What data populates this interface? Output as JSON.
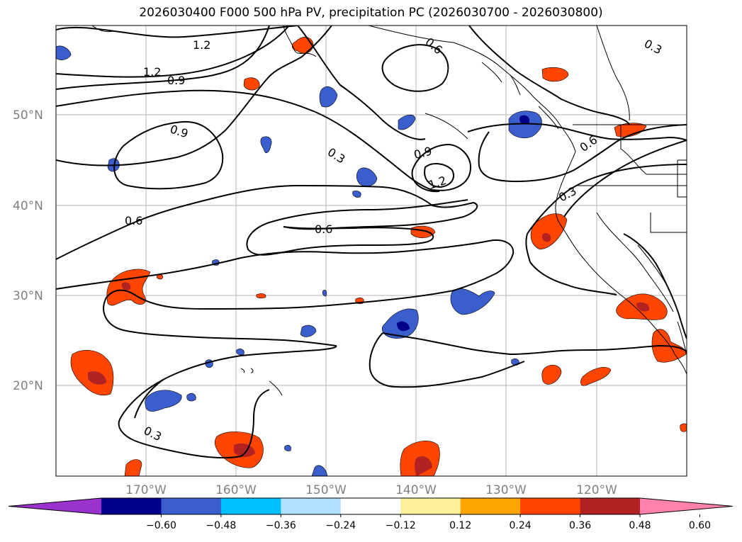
{
  "title": "2026030400 F000 500 hPa PV, precipitation PC (2026030700 - 2026030800)",
  "latitude_labels": [
    "50°N",
    "40°N",
    "30°N",
    "20°N"
  ],
  "longitude_labels": [
    "170°W",
    "160°W",
    "150°W",
    "140°W",
    "130°W",
    "120°W"
  ],
  "pv_contour_labels": [
    "1.2",
    "1.2",
    "0.9",
    "0.9",
    "0.6",
    "0.3",
    "0.9",
    "1.2",
    "0.6",
    "0.6",
    "0.6",
    "0.3",
    "0.3",
    "0.3"
  ],
  "colorbar": {
    "ticks": [
      "−0.60",
      "−0.48",
      "−0.36",
      "−0.24",
      "−0.12",
      "0.12",
      "0.24",
      "0.36",
      "0.48",
      "0.60"
    ],
    "colors": [
      "#9a32cd",
      "#00008b",
      "#3a5fcd",
      "#00bfff",
      "#b0e2ff",
      "#ffffff",
      "#fff09a",
      "#ffa500",
      "#ff4500",
      "#b22222",
      "#ff82ab"
    ]
  }
}
